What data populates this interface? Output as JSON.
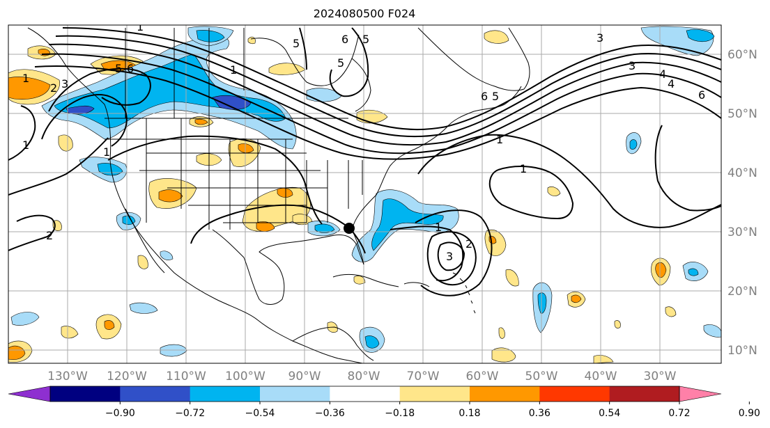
{
  "title": "2024080500 F024",
  "longitude_labels": [
    "130°W",
    "120°W",
    "110°W",
    "100°W",
    "90°W",
    "80°W",
    "70°W",
    "60°W",
    "50°W",
    "40°W",
    "30°W"
  ],
  "latitude_labels": [
    "60°N",
    "50°N",
    "40°N",
    "30°N",
    "20°N",
    "10°N"
  ],
  "colorbar": {
    "tick_labels": [
      "−0.90",
      "−0.72",
      "−0.54",
      "−0.36",
      "−0.18",
      "0.18",
      "0.36",
      "0.54",
      "0.72",
      "0.90"
    ],
    "colors": [
      "#8e2fd0",
      "#000080",
      "#3050c8",
      "#00b4f0",
      "#a8dcf8",
      "#ffffff",
      "#ffe68a",
      "#ff9800",
      "#ff3800",
      "#b01c20",
      "#ff80a8"
    ]
  },
  "contour_labels": [
    "1",
    "5",
    "6",
    "5",
    "6",
    "5",
    "6",
    "4",
    "3",
    "1",
    "1",
    "2",
    "3",
    "2",
    "1",
    "1",
    "3",
    "4",
    "5",
    "6",
    "5",
    "1",
    "2",
    "3",
    "1",
    "1"
  ],
  "marker": {
    "name": "black circle point",
    "color": "#000000"
  }
}
